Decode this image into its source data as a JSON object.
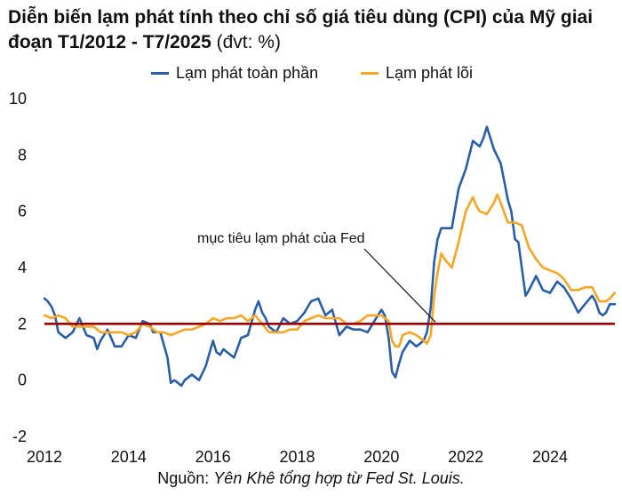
{
  "title": {
    "main": "Diễn biến lạm phát tính theo chỉ số giá tiêu dùng (CPI) của Mỹ giai đoạn T1/2012 - T7/2025",
    "unit": "(đvt: %)"
  },
  "source": {
    "label": "Nguồn:",
    "text": "Yên Khê tổng hợp từ Fed St. Louis."
  },
  "colors": {
    "headline": "#2a5fa5",
    "core": "#f5a623",
    "target": "#a00000",
    "axis": "#111111"
  },
  "chart_data": {
    "type": "line",
    "title": "Diễn biến lạm phát tính theo chỉ số giá tiêu dùng (CPI) của Mỹ giai đoạn T1/2012 - T7/2025",
    "xlabel": "",
    "ylabel": "",
    "x_ticks": [
      "2012",
      "2014",
      "2016",
      "2018",
      "2020",
      "2022",
      "2024"
    ],
    "y_ticks": [
      10,
      8,
      6,
      4,
      2,
      0,
      -2
    ],
    "xlim": [
      2012.0,
      2025.54
    ],
    "ylim": [
      -2,
      10
    ],
    "grid": false,
    "legend": "top-center",
    "series": [
      {
        "name": "Lạm phát toàn phần",
        "color": "#2a5fa5",
        "x": [
          2012.0,
          2012.08,
          2012.17,
          2012.25,
          2012.33,
          2012.5,
          2012.67,
          2012.83,
          2013.0,
          2013.17,
          2013.25,
          2013.33,
          2013.5,
          2013.67,
          2013.83,
          2014.0,
          2014.17,
          2014.33,
          2014.5,
          2014.58,
          2014.75,
          2014.92,
          2015.0,
          2015.08,
          2015.17,
          2015.25,
          2015.33,
          2015.5,
          2015.67,
          2015.83,
          2016.0,
          2016.08,
          2016.17,
          2016.25,
          2016.33,
          2016.5,
          2016.67,
          2016.83,
          2017.0,
          2017.08,
          2017.17,
          2017.25,
          2017.33,
          2017.5,
          2017.67,
          2017.83,
          2018.0,
          2018.17,
          2018.33,
          2018.5,
          2018.67,
          2018.83,
          2019.0,
          2019.17,
          2019.33,
          2019.5,
          2019.67,
          2019.83,
          2020.0,
          2020.08,
          2020.17,
          2020.25,
          2020.33,
          2020.42,
          2020.5,
          2020.67,
          2020.83,
          2021.0,
          2021.08,
          2021.17,
          2021.25,
          2021.33,
          2021.42,
          2021.5,
          2021.67,
          2021.83,
          2022.0,
          2022.17,
          2022.33,
          2022.42,
          2022.5,
          2022.67,
          2022.83,
          2023.0,
          2023.08,
          2023.17,
          2023.25,
          2023.33,
          2023.42,
          2023.5,
          2023.67,
          2023.83,
          2024.0,
          2024.17,
          2024.33,
          2024.5,
          2024.67,
          2024.83,
          2025.0,
          2025.08,
          2025.17,
          2025.25,
          2025.33,
          2025.42,
          2025.54
        ],
        "values": [
          2.9,
          2.8,
          2.6,
          2.3,
          1.7,
          1.5,
          1.7,
          2.2,
          1.6,
          1.5,
          1.1,
          1.4,
          1.8,
          1.2,
          1.2,
          1.6,
          1.5,
          2.1,
          2.0,
          1.7,
          1.7,
          0.8,
          -0.1,
          0.0,
          -0.1,
          -0.2,
          0.0,
          0.2,
          0.0,
          0.5,
          1.4,
          1.0,
          0.9,
          1.1,
          1.0,
          0.8,
          1.5,
          1.6,
          2.5,
          2.8,
          2.4,
          2.2,
          1.9,
          1.7,
          2.2,
          2.0,
          2.1,
          2.4,
          2.8,
          2.9,
          2.3,
          2.5,
          1.6,
          1.9,
          1.8,
          1.8,
          1.7,
          2.1,
          2.5,
          2.3,
          1.5,
          0.3,
          0.1,
          0.6,
          1.0,
          1.4,
          1.2,
          1.4,
          1.7,
          2.6,
          4.2,
          5.0,
          5.4,
          5.4,
          5.4,
          6.8,
          7.5,
          8.5,
          8.3,
          8.6,
          9.0,
          8.2,
          7.7,
          6.4,
          6.0,
          5.0,
          4.9,
          4.0,
          3.0,
          3.2,
          3.7,
          3.2,
          3.1,
          3.5,
          3.3,
          2.9,
          2.4,
          2.7,
          3.0,
          2.8,
          2.4,
          2.3,
          2.4,
          2.7,
          2.7
        ]
      },
      {
        "name": "Lạm phát lõi",
        "color": "#f5a623",
        "x": [
          2012.0,
          2012.17,
          2012.33,
          2012.5,
          2012.67,
          2012.83,
          2013.0,
          2013.17,
          2013.33,
          2013.5,
          2013.67,
          2013.83,
          2014.0,
          2014.17,
          2014.33,
          2014.5,
          2014.67,
          2014.83,
          2015.0,
          2015.17,
          2015.33,
          2015.5,
          2015.67,
          2015.83,
          2016.0,
          2016.17,
          2016.33,
          2016.5,
          2016.67,
          2016.83,
          2017.0,
          2017.17,
          2017.33,
          2017.5,
          2017.67,
          2017.83,
          2018.0,
          2018.17,
          2018.33,
          2018.5,
          2018.67,
          2018.83,
          2019.0,
          2019.17,
          2019.33,
          2019.5,
          2019.67,
          2019.83,
          2020.0,
          2020.17,
          2020.25,
          2020.33,
          2020.42,
          2020.5,
          2020.67,
          2020.83,
          2021.0,
          2021.08,
          2021.17,
          2021.25,
          2021.33,
          2021.42,
          2021.5,
          2021.67,
          2021.83,
          2022.0,
          2022.17,
          2022.25,
          2022.33,
          2022.5,
          2022.67,
          2022.75,
          2022.83,
          2023.0,
          2023.17,
          2023.33,
          2023.5,
          2023.67,
          2023.83,
          2024.0,
          2024.17,
          2024.33,
          2024.5,
          2024.67,
          2024.83,
          2025.0,
          2025.17,
          2025.33,
          2025.42,
          2025.54
        ],
        "values": [
          2.3,
          2.2,
          2.3,
          2.2,
          1.9,
          1.9,
          1.9,
          1.9,
          1.7,
          1.7,
          1.7,
          1.7,
          1.6,
          1.7,
          2.0,
          1.9,
          1.7,
          1.7,
          1.6,
          1.7,
          1.8,
          1.8,
          1.9,
          2.0,
          2.2,
          2.1,
          2.2,
          2.2,
          2.3,
          2.1,
          2.3,
          2.0,
          1.7,
          1.7,
          1.7,
          1.8,
          1.8,
          2.1,
          2.2,
          2.3,
          2.2,
          2.2,
          2.2,
          2.0,
          2.0,
          2.1,
          2.3,
          2.3,
          2.3,
          2.1,
          1.4,
          1.2,
          1.2,
          1.6,
          1.7,
          1.6,
          1.4,
          1.3,
          1.6,
          3.0,
          3.8,
          4.5,
          4.3,
          4.0,
          4.9,
          6.0,
          6.5,
          6.2,
          6.0,
          5.9,
          6.3,
          6.6,
          6.3,
          5.6,
          5.6,
          5.5,
          4.7,
          4.3,
          4.0,
          3.9,
          3.8,
          3.6,
          3.2,
          3.2,
          3.3,
          3.3,
          2.8,
          2.8,
          2.9,
          3.1
        ]
      }
    ],
    "reference_line": {
      "y": 2,
      "label": "mục tiêu lạm phát của Fed",
      "color": "#a00000"
    }
  }
}
